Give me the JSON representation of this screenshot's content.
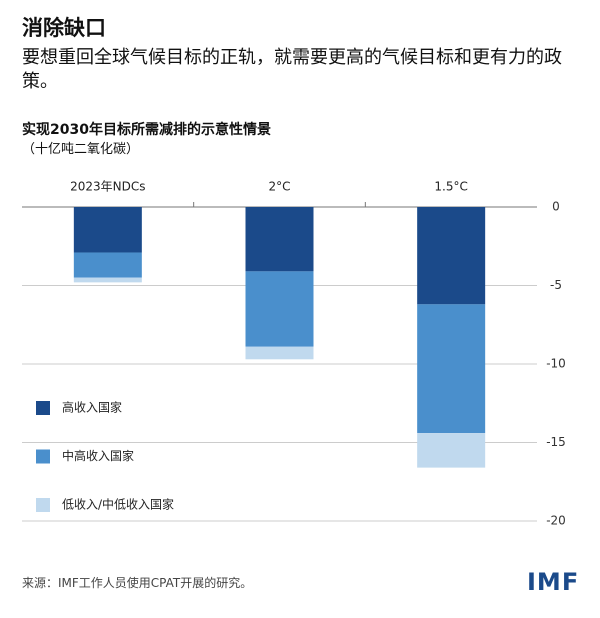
{
  "chart_data": {
    "type": "stacked-bar",
    "title": "消除缺口",
    "subtitle": "要想重回全球气候目标的正轨，就需要更高的气候目标和更有力的政策。",
    "chart_title": "实现2030年目标所需减排的示意性情景",
    "unit_label": "（十亿吨二氧化碳）",
    "categories": [
      "2023年NDCs",
      "2°C",
      "1.5°C"
    ],
    "series": [
      {
        "name": "高收入国家",
        "color": "#1b4a8a",
        "values": [
          -2.9,
          -4.1,
          -6.2
        ]
      },
      {
        "name": "中高收入国家",
        "color": "#4a8fcc",
        "values": [
          -1.6,
          -4.8,
          -8.2
        ]
      },
      {
        "name": "低收入/中低收入国家",
        "color": "#c0d9ee",
        "values": [
          -0.3,
          -0.8,
          -2.2
        ]
      }
    ],
    "ylim": [
      -20,
      0
    ],
    "yticks": [
      0,
      -5,
      -10,
      -15,
      -20
    ],
    "grid": true,
    "source": "来源：IMF工作人员使用CPAT开展的研究。",
    "logo": "IMF"
  }
}
